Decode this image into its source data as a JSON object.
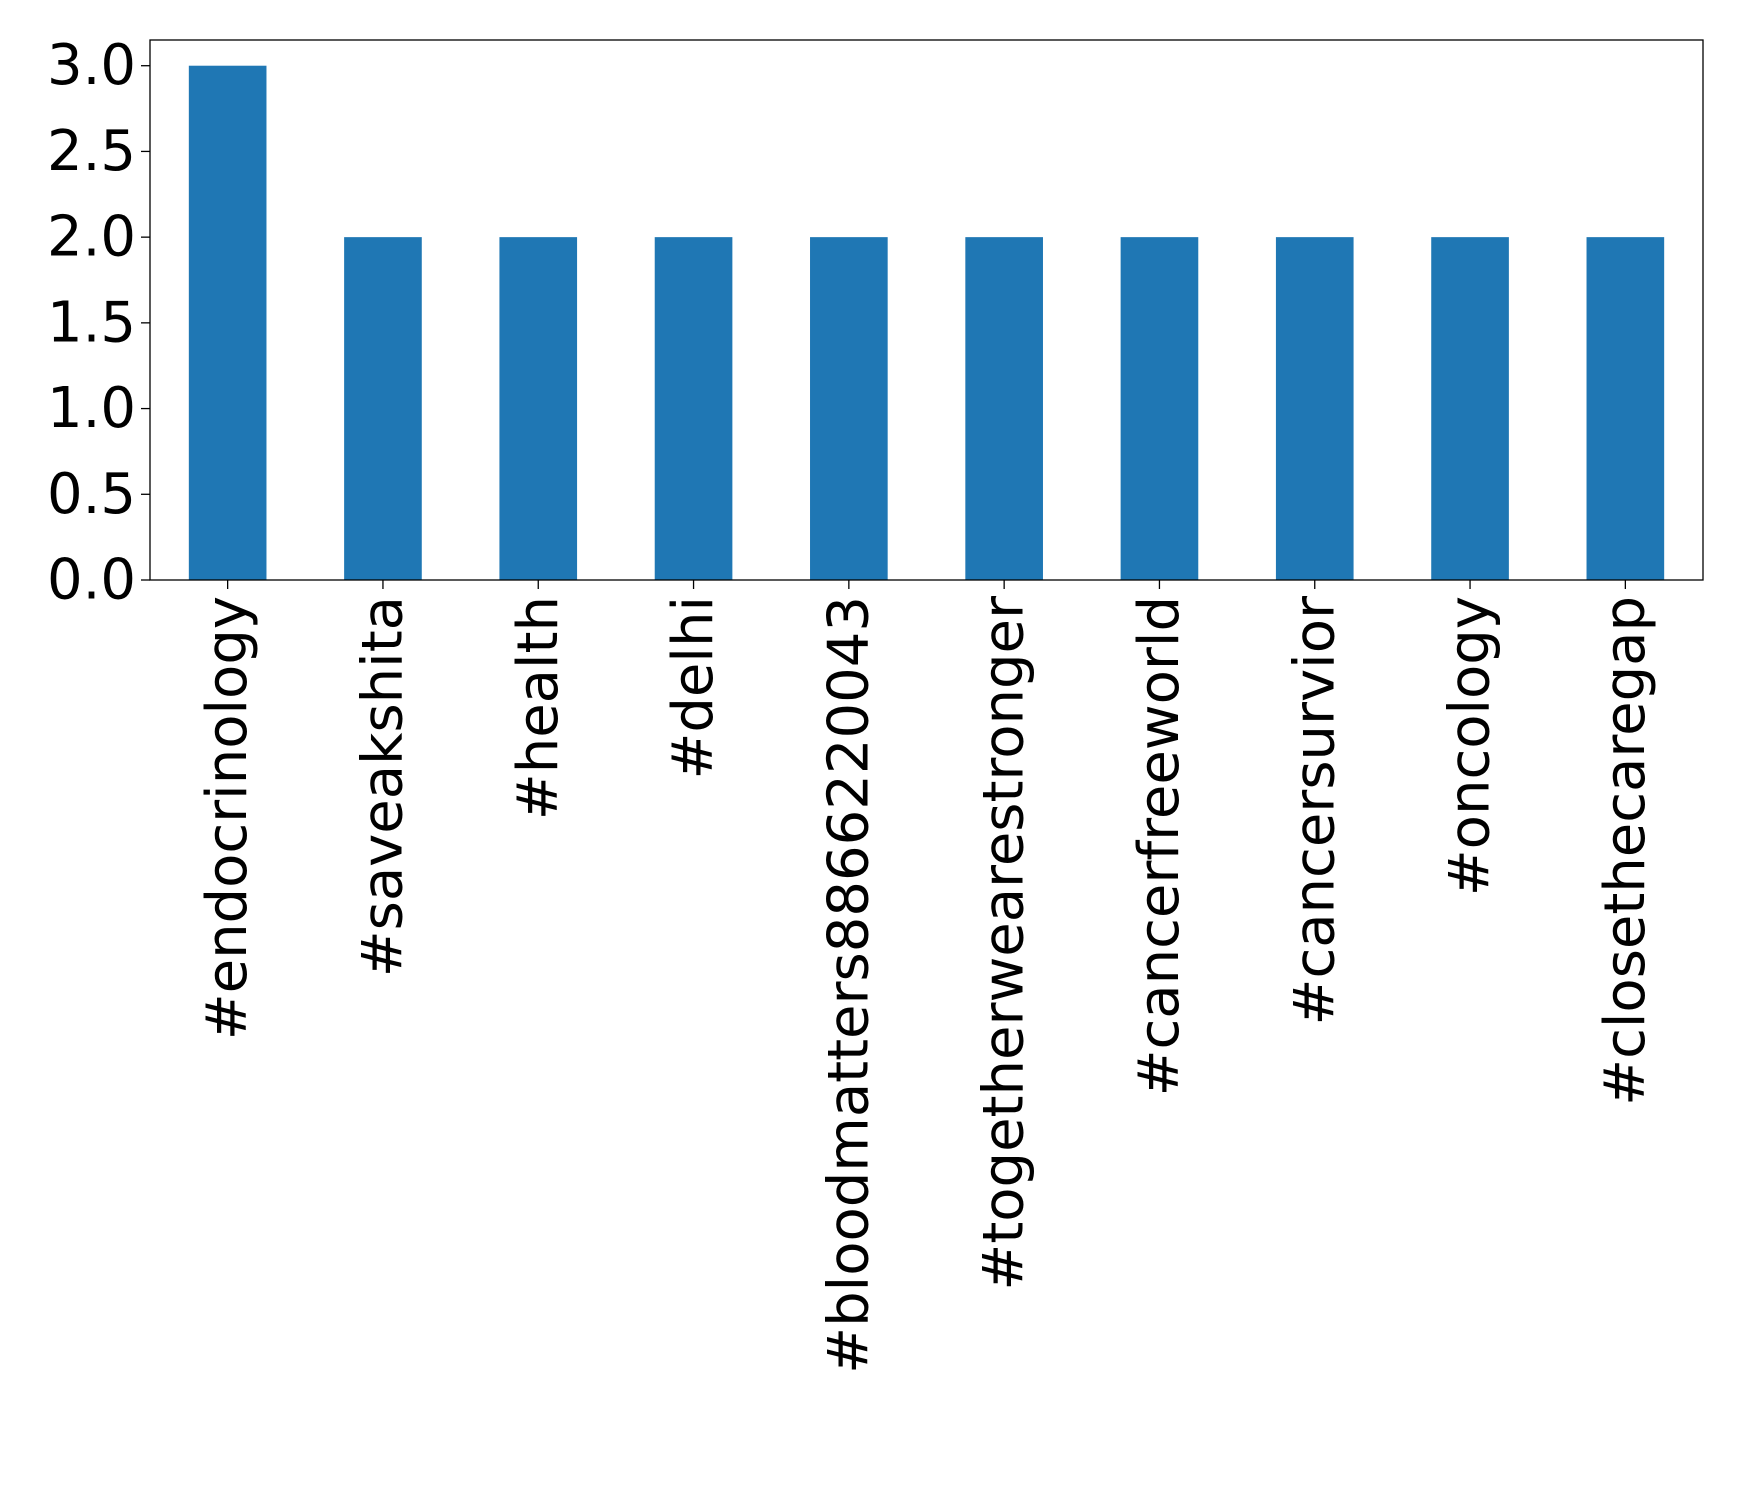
{
  "chart_data": {
    "type": "bar",
    "categories": [
      "#endocrinology",
      "#saveakshita",
      "#health",
      "#delhi",
      "#bloodmatters8866220043",
      "#togetherwearestronger",
      "#cancerfreeworld",
      "#cancersurvior",
      "#oncology",
      "#closethecaregap"
    ],
    "values": [
      3,
      2,
      2,
      2,
      2,
      2,
      2,
      2,
      2,
      2
    ],
    "title": "",
    "xlabel": "",
    "ylabel": "",
    "ylim": [
      0,
      3.15
    ],
    "yticks": [
      "0.0",
      "0.5",
      "1.0",
      "1.5",
      "2.0",
      "2.5",
      "3.0"
    ],
    "bar_color": "#1f77b4",
    "grid": false,
    "legend": "none"
  }
}
